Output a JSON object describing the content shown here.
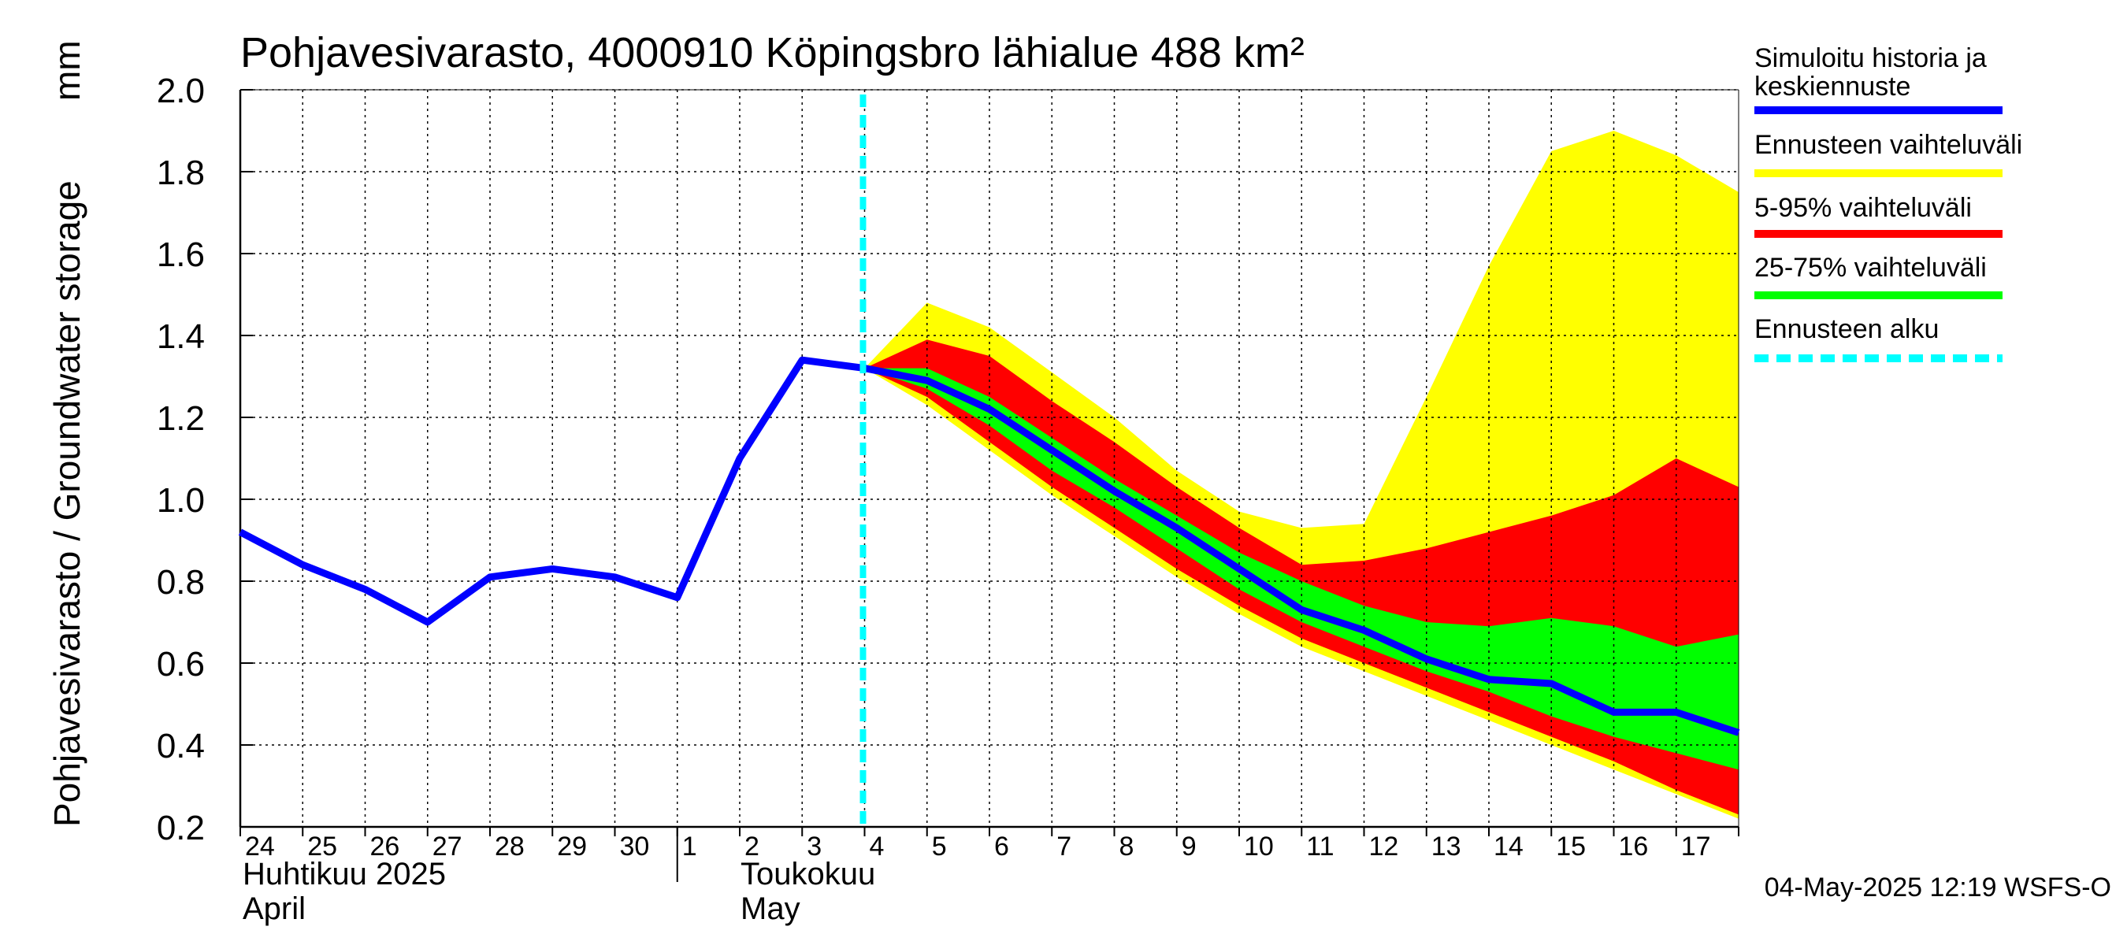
{
  "title": "Pohjavesivarasto, 4000910 Köpingsbro lähialue 488 km²",
  "y_axis": {
    "label_fi": "Pohjavesivarasto / Groundwater storage",
    "unit": "mm"
  },
  "months": [
    {
      "line1": "Huhtikuu  2025",
      "line2": "April"
    },
    {
      "line1": "Toukokuu",
      "line2": "May"
    }
  ],
  "footer": "04-May-2025 12:19 WSFS-O",
  "legend": [
    {
      "label": "Simuloitu historia ja keskiennuste",
      "color": "#0000ff",
      "style": "solid"
    },
    {
      "label": "Ennusteen vaihteluväli",
      "color": "#ffff00",
      "style": "solid"
    },
    {
      "label": "5-95% vaihteluväli",
      "color": "#ff0000",
      "style": "solid"
    },
    {
      "label": "25-75% vaihteluväli",
      "color": "#00ff00",
      "style": "solid"
    },
    {
      "label": "Ennusteen alku",
      "color": "#00ffff",
      "style": "dashed"
    }
  ],
  "chart_data": {
    "type": "area",
    "ylim": [
      0.2,
      2.0
    ],
    "yticks": [
      0.2,
      0.4,
      0.6,
      0.8,
      1.0,
      1.2,
      1.4,
      1.6,
      1.8,
      2.0
    ],
    "ytick_labels": [
      "0.2",
      "0.4",
      "0.6",
      "0.8",
      "1.0",
      "1.2",
      "1.4",
      "1.6",
      "1.8",
      "2.0"
    ],
    "x_labels": [
      "24",
      "25",
      "26",
      "27",
      "28",
      "29",
      "30",
      "1",
      "2",
      "3",
      "4",
      "5",
      "6",
      "7",
      "8",
      "9",
      "10",
      "11",
      "12",
      "13",
      "14",
      "15",
      "16",
      "17"
    ],
    "x_day_index_range": [
      0,
      24
    ],
    "month_boundary_index": 7,
    "forecast_start_index": 10,
    "grid": true,
    "series": [
      {
        "name": "Simuloitu historia ja keskiennuste",
        "color": "#0000ff",
        "x": [
          0,
          1,
          2,
          3,
          4,
          5,
          6,
          7,
          8,
          9,
          10,
          11,
          12,
          13,
          14,
          15,
          16,
          17,
          18,
          19,
          20,
          21,
          22,
          23,
          24
        ],
        "values": [
          0.92,
          0.84,
          0.78,
          0.7,
          0.81,
          0.83,
          0.81,
          0.76,
          1.1,
          1.34,
          1.32,
          1.29,
          1.22,
          1.12,
          1.02,
          0.93,
          0.83,
          0.73,
          0.68,
          0.61,
          0.56,
          0.55,
          0.48,
          0.48,
          0.43
        ]
      }
    ],
    "bands": [
      {
        "name": "Ennusteen vaihteluväli",
        "color": "#ffff00",
        "x": [
          10,
          11,
          12,
          13,
          14,
          15,
          16,
          17,
          18,
          19,
          20,
          21,
          22,
          23,
          24
        ],
        "upper": [
          1.32,
          1.48,
          1.42,
          1.31,
          1.2,
          1.07,
          0.97,
          0.93,
          0.94,
          1.25,
          1.57,
          1.85,
          1.9,
          1.84,
          1.75
        ],
        "lower": [
          1.32,
          1.23,
          1.12,
          1.01,
          0.91,
          0.81,
          0.72,
          0.64,
          0.58,
          0.52,
          0.46,
          0.4,
          0.34,
          0.28,
          0.22
        ]
      },
      {
        "name": "5-95% vaihteluväli",
        "color": "#ff0000",
        "x": [
          10,
          11,
          12,
          13,
          14,
          15,
          16,
          17,
          18,
          19,
          20,
          21,
          22,
          23,
          24
        ],
        "upper": [
          1.32,
          1.39,
          1.35,
          1.24,
          1.14,
          1.03,
          0.93,
          0.84,
          0.85,
          0.88,
          0.92,
          0.96,
          1.01,
          1.1,
          1.03
        ],
        "lower": [
          1.32,
          1.25,
          1.14,
          1.03,
          0.93,
          0.83,
          0.74,
          0.66,
          0.6,
          0.54,
          0.48,
          0.42,
          0.36,
          0.29,
          0.23
        ]
      },
      {
        "name": "25-75% vaihteluväli",
        "color": "#00ff00",
        "x": [
          10,
          11,
          12,
          13,
          14,
          15,
          16,
          17,
          18,
          19,
          20,
          21,
          22,
          23,
          24
        ],
        "upper": [
          1.32,
          1.32,
          1.25,
          1.15,
          1.05,
          0.96,
          0.87,
          0.8,
          0.74,
          0.7,
          0.69,
          0.71,
          0.69,
          0.64,
          0.67
        ],
        "lower": [
          1.32,
          1.27,
          1.18,
          1.07,
          0.98,
          0.88,
          0.78,
          0.7,
          0.64,
          0.58,
          0.53,
          0.47,
          0.42,
          0.38,
          0.34
        ]
      }
    ]
  }
}
